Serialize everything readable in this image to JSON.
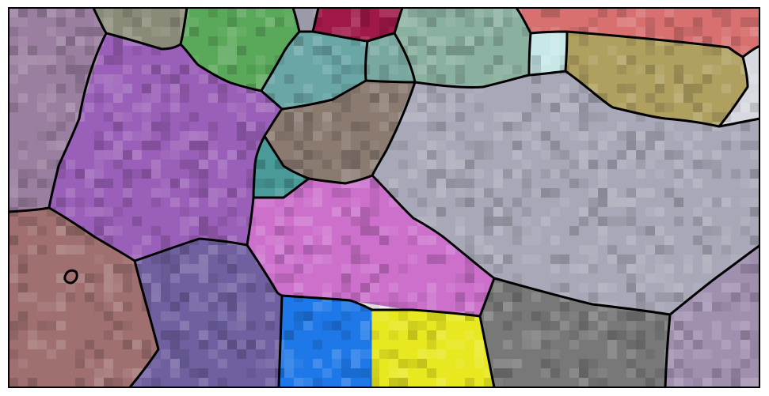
{
  "figure": {
    "kind": "orientation-map-with-grain-boundaries",
    "background": "#ffffff",
    "boundary_color": "#000000",
    "frame_color": "#000000",
    "grains": [
      {
        "id": "g01",
        "color": "#9a7fa0"
      },
      {
        "id": "g02",
        "color": "#8a8a78"
      },
      {
        "id": "g03",
        "color": "#5aa85a"
      },
      {
        "id": "g04",
        "color": "#9a9aa8"
      },
      {
        "id": "g05",
        "color": "#a01848"
      },
      {
        "id": "g06",
        "color": "#6aa6a6"
      },
      {
        "id": "g07",
        "color": "#8ab0a0"
      },
      {
        "id": "g08",
        "color": "#d87070"
      },
      {
        "id": "g09",
        "color": "#9a5fb8"
      },
      {
        "id": "g10",
        "color": "#78a8a0"
      },
      {
        "id": "g11",
        "color": "#c8e8e8"
      },
      {
        "id": "g12",
        "color": "#b0a060"
      },
      {
        "id": "g13",
        "color": "#8a7a70"
      },
      {
        "id": "g14",
        "color": "#a8a8b8"
      },
      {
        "id": "g15",
        "color": "#d8d8e0"
      },
      {
        "id": "g16",
        "color": "#4a9a9a"
      },
      {
        "id": "g17",
        "color": "#cc70cc"
      },
      {
        "id": "g18",
        "color": "#a07070"
      },
      {
        "id": "g19",
        "color": "#7060a0"
      },
      {
        "id": "g20",
        "color": "#1e78e8"
      },
      {
        "id": "g21",
        "color": "#e8e820"
      },
      {
        "id": "g22",
        "color": "#787878"
      },
      {
        "id": "g23",
        "color": "#a090b0"
      },
      {
        "id": "g24",
        "color": "#9a6a9a"
      },
      {
        "id": "g25",
        "color": "#9a7878"
      },
      {
        "id": "g26",
        "color": "#5a5a5a"
      }
    ]
  }
}
